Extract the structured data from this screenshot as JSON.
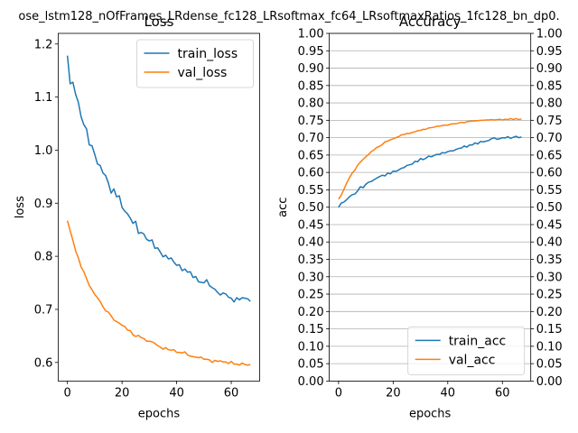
{
  "figure": {
    "suptitle": "ose_lstm128_nOfFrames_LRdense_fc128_LRsoftmax_fc64_LRsoftmaxRatios_1fc128_bn_dp0."
  },
  "colors": {
    "train": "#1f77b4",
    "val": "#ff7f0e",
    "grid": "#b0b0b0"
  },
  "chart_data": [
    {
      "type": "line",
      "title": "Loss",
      "xlabel": "epochs",
      "ylabel": "loss",
      "xlim": [
        -3.4,
        70.4
      ],
      "ylim": [
        0.565,
        1.22
      ],
      "xticks": [
        0,
        20,
        40,
        60
      ],
      "yticks": [
        0.6,
        0.7,
        0.8,
        0.9,
        1.0,
        1.1,
        1.2
      ],
      "ytick_labels": [
        "0.6",
        "0.7",
        "0.8",
        "0.9",
        "1.0",
        "1.1",
        "1.2"
      ],
      "grid": false,
      "legend_position": "top-right",
      "series": [
        {
          "name": "train_loss",
          "color": "#1f77b4",
          "values": [
            1.178,
            1.125,
            1.128,
            1.105,
            1.09,
            1.063,
            1.048,
            1.04,
            1.01,
            1.008,
            0.992,
            0.974,
            0.971,
            0.957,
            0.952,
            0.938,
            0.919,
            0.927,
            0.912,
            0.914,
            0.892,
            0.885,
            0.88,
            0.872,
            0.862,
            0.866,
            0.843,
            0.845,
            0.842,
            0.832,
            0.829,
            0.831,
            0.815,
            0.816,
            0.808,
            0.799,
            0.802,
            0.795,
            0.797,
            0.789,
            0.783,
            0.784,
            0.773,
            0.776,
            0.77,
            0.771,
            0.76,
            0.762,
            0.752,
            0.751,
            0.75,
            0.756,
            0.745,
            0.741,
            0.738,
            0.732,
            0.727,
            0.731,
            0.729,
            0.723,
            0.721,
            0.714,
            0.722,
            0.718,
            0.722,
            0.721,
            0.72,
            0.715
          ]
        },
        {
          "name": "val_loss",
          "color": "#ff7f0e",
          "values": [
            0.867,
            0.848,
            0.83,
            0.81,
            0.797,
            0.78,
            0.771,
            0.758,
            0.745,
            0.737,
            0.728,
            0.722,
            0.715,
            0.705,
            0.697,
            0.695,
            0.688,
            0.68,
            0.677,
            0.674,
            0.67,
            0.668,
            0.661,
            0.66,
            0.652,
            0.649,
            0.651,
            0.647,
            0.645,
            0.64,
            0.64,
            0.639,
            0.636,
            0.632,
            0.629,
            0.625,
            0.628,
            0.624,
            0.623,
            0.624,
            0.619,
            0.619,
            0.618,
            0.62,
            0.614,
            0.612,
            0.611,
            0.61,
            0.609,
            0.61,
            0.606,
            0.606,
            0.605,
            0.6,
            0.604,
            0.602,
            0.603,
            0.601,
            0.601,
            0.598,
            0.602,
            0.597,
            0.597,
            0.595,
            0.599,
            0.596,
            0.595,
            0.596
          ]
        }
      ]
    },
    {
      "type": "line",
      "title": "Accuracy",
      "xlabel": "epochs",
      "ylabel": "acc",
      "xlim": [
        -3.4,
        70.4
      ],
      "ylim": [
        0.0,
        1.0
      ],
      "xticks": [
        0,
        20,
        40,
        60
      ],
      "yticks": [
        0.0,
        0.05,
        0.1,
        0.15,
        0.2,
        0.25,
        0.3,
        0.35,
        0.4,
        0.45,
        0.5,
        0.55,
        0.6,
        0.65,
        0.7,
        0.75,
        0.8,
        0.85,
        0.9,
        0.95,
        1.0
      ],
      "ytick_labels": [
        "0.00",
        "0.05",
        "0.10",
        "0.15",
        "0.20",
        "0.25",
        "0.30",
        "0.35",
        "0.40",
        "0.45",
        "0.50",
        "0.55",
        "0.60",
        "0.65",
        "0.70",
        "0.75",
        "0.80",
        "0.85",
        "0.90",
        "0.95",
        "1.00"
      ],
      "grid": true,
      "right_axis_ticks": true,
      "legend_position": "bottom-right",
      "series": [
        {
          "name": "train_acc",
          "color": "#1f77b4",
          "values": [
            0.5,
            0.512,
            0.515,
            0.522,
            0.53,
            0.536,
            0.538,
            0.547,
            0.559,
            0.556,
            0.566,
            0.572,
            0.574,
            0.579,
            0.584,
            0.588,
            0.592,
            0.59,
            0.598,
            0.596,
            0.604,
            0.603,
            0.607,
            0.612,
            0.614,
            0.62,
            0.622,
            0.624,
            0.632,
            0.631,
            0.64,
            0.637,
            0.641,
            0.647,
            0.645,
            0.649,
            0.652,
            0.652,
            0.657,
            0.656,
            0.66,
            0.662,
            0.662,
            0.666,
            0.669,
            0.67,
            0.676,
            0.673,
            0.679,
            0.679,
            0.685,
            0.682,
            0.689,
            0.688,
            0.69,
            0.692,
            0.697,
            0.7,
            0.695,
            0.697,
            0.7,
            0.699,
            0.703,
            0.698,
            0.701,
            0.704,
            0.7,
            0.702
          ]
        },
        {
          "name": "val_acc",
          "color": "#ff7f0e",
          "values": [
            0.523,
            0.535,
            0.552,
            0.57,
            0.585,
            0.598,
            0.607,
            0.621,
            0.63,
            0.638,
            0.645,
            0.652,
            0.66,
            0.665,
            0.672,
            0.675,
            0.68,
            0.688,
            0.69,
            0.694,
            0.697,
            0.7,
            0.703,
            0.708,
            0.709,
            0.712,
            0.712,
            0.715,
            0.717,
            0.72,
            0.721,
            0.724,
            0.724,
            0.728,
            0.729,
            0.73,
            0.733,
            0.733,
            0.735,
            0.736,
            0.736,
            0.739,
            0.74,
            0.74,
            0.742,
            0.744,
            0.743,
            0.746,
            0.747,
            0.748,
            0.748,
            0.749,
            0.75,
            0.75,
            0.751,
            0.751,
            0.752,
            0.751,
            0.752,
            0.753,
            0.751,
            0.753,
            0.752,
            0.755,
            0.752,
            0.755,
            0.752,
            0.754
          ]
        }
      ]
    }
  ]
}
